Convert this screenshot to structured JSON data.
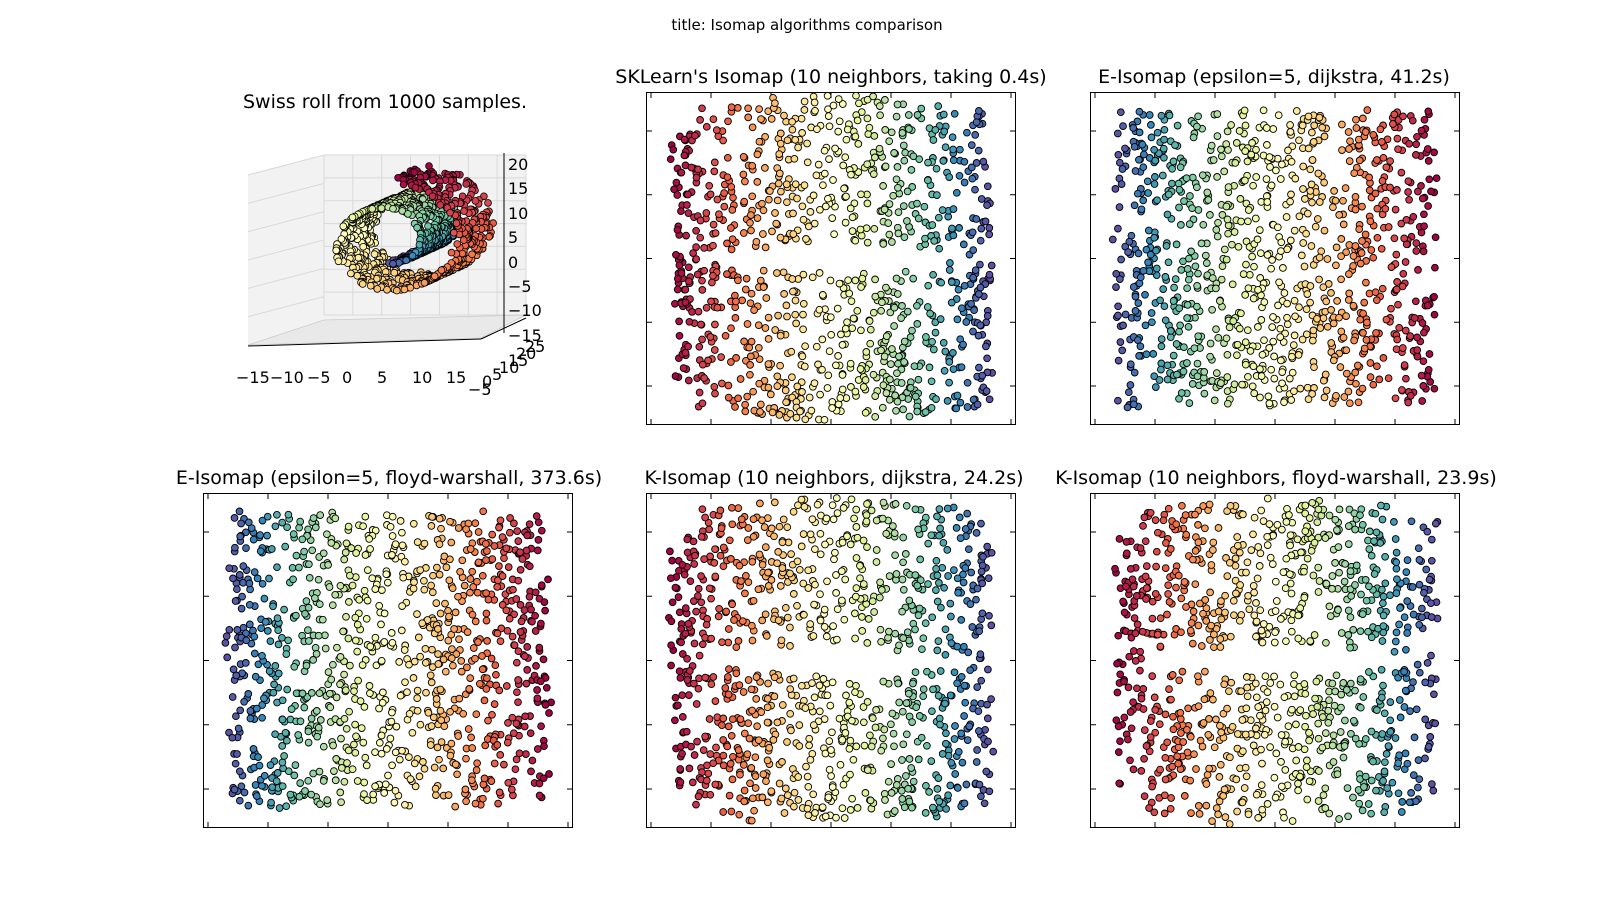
{
  "figure": {
    "suptitle": "title: Isomap algorithms comparison"
  },
  "chart_data": [
    {
      "type": "scatter",
      "subtype": "3d",
      "title": "Swiss roll from 1000 samples.",
      "n_samples": 1000,
      "colormap": "Spectral",
      "x_ticks": [
        "−15",
        "−10",
        "−5",
        "0",
        "5",
        "10",
        "15"
      ],
      "y_ticks": [
        "−5",
        "0",
        "5",
        "10",
        "15",
        "20",
        "25"
      ],
      "z_ticks": [
        "20",
        "15",
        "10",
        "5",
        "0",
        "−5",
        "−10",
        "−15"
      ],
      "xlim": [
        -15,
        15
      ],
      "zlim": [
        -15,
        20
      ],
      "grid": true
    },
    {
      "type": "scatter",
      "title": "SKLearn's Isomap (10 neighbors, taking 0.4s)",
      "embedding": "kneighbors",
      "orientation": "normal",
      "colormap": "Spectral",
      "tick_labels": false
    },
    {
      "type": "scatter",
      "title": "E-Isomap (epsilon=5, dijkstra, 41.2s)",
      "embedding": "epsilon",
      "orientation": "mirrored",
      "colormap": "Spectral",
      "tick_labels": false
    },
    {
      "type": "scatter",
      "title": "E-Isomap (epsilon=5, floyd-warshall, 373.6s)",
      "embedding": "epsilon",
      "orientation": "mirrored",
      "colormap": "Spectral",
      "tick_labels": false
    },
    {
      "type": "scatter",
      "title": "K-Isomap (10 neighbors, dijkstra, 24.2s)",
      "embedding": "kneighbors",
      "orientation": "normal",
      "colormap": "Spectral",
      "tick_labels": false
    },
    {
      "type": "scatter",
      "title": "K-Isomap (10 neighbors, floyd-warshall, 23.9s)",
      "embedding": "kneighbors",
      "orientation": "normal",
      "colormap": "Spectral",
      "tick_labels": false
    }
  ],
  "colors": {
    "spectral": [
      "#9e0142",
      "#d53e4f",
      "#f46d43",
      "#fdae61",
      "#fee08b",
      "#ffffbf",
      "#e6f598",
      "#abdda4",
      "#66c2a5",
      "#3288bd",
      "#5e4fa2"
    ],
    "axes": "#000000",
    "grid3d": "#d9d9d9",
    "pane3d": "#f2f2f2",
    "marker_edge": "#000000"
  }
}
